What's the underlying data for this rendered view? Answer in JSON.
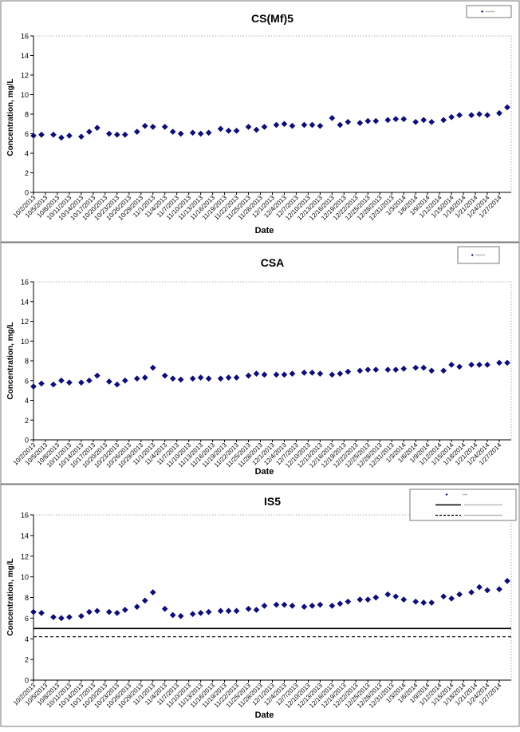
{
  "x_tick_labels": [
    "10/2/2013",
    "10/5/2013",
    "10/8/2013",
    "10/11/2013",
    "10/14/2013",
    "10/17/2013",
    "10/20/2013",
    "10/23/2013",
    "10/26/2013",
    "10/29/2013",
    "11/1/2013",
    "11/4/2013",
    "11/7/2013",
    "11/10/2013",
    "11/13/2013",
    "11/16/2013",
    "11/19/2013",
    "11/22/2013",
    "11/25/2013",
    "11/28/2013",
    "12/1/2013",
    "12/4/2013",
    "12/7/2013",
    "12/10/2013",
    "12/13/2013",
    "12/16/2013",
    "12/19/2013",
    "12/22/2013",
    "12/25/2013",
    "12/28/2013",
    "12/31/2013",
    "1/3/2014",
    "1/6/2014",
    "1/9/2014",
    "1/12/2014",
    "1/15/2014",
    "1/18/2014",
    "1/21/2014",
    "1/24/2014",
    "1/27/2014"
  ],
  "chart_data": [
    {
      "type": "scatter",
      "title": "CS(Mf)5",
      "xlabel": "Date",
      "ylabel": "Concentration, mg/L",
      "ylim": [
        0,
        16
      ],
      "ytick_step": 2,
      "xlim": [
        "2013-10-02",
        "2014-01-30"
      ],
      "grid": false,
      "legend_placement": "top-right",
      "marker_color": "#0d0d80",
      "points": [
        [
          "2013-10-02",
          5.8
        ],
        [
          "2013-10-04",
          5.9
        ],
        [
          "2013-10-07",
          5.9
        ],
        [
          "2013-10-09",
          5.6
        ],
        [
          "2013-10-11",
          5.8
        ],
        [
          "2013-10-14",
          5.7
        ],
        [
          "2013-10-16",
          6.2
        ],
        [
          "2013-10-18",
          6.6
        ],
        [
          "2013-10-21",
          6.0
        ],
        [
          "2013-10-23",
          5.9
        ],
        [
          "2013-10-25",
          5.9
        ],
        [
          "2013-10-28",
          6.2
        ],
        [
          "2013-10-30",
          6.8
        ],
        [
          "2013-11-01",
          6.7
        ],
        [
          "2013-11-04",
          6.7
        ],
        [
          "2013-11-06",
          6.2
        ],
        [
          "2013-11-08",
          6.0
        ],
        [
          "2013-11-11",
          6.1
        ],
        [
          "2013-11-13",
          6.0
        ],
        [
          "2013-11-15",
          6.1
        ],
        [
          "2013-11-18",
          6.5
        ],
        [
          "2013-11-20",
          6.3
        ],
        [
          "2013-11-22",
          6.3
        ],
        [
          "2013-11-25",
          6.7
        ],
        [
          "2013-11-27",
          6.4
        ],
        [
          "2013-11-29",
          6.7
        ],
        [
          "2013-12-02",
          6.9
        ],
        [
          "2013-12-04",
          7.0
        ],
        [
          "2013-12-06",
          6.8
        ],
        [
          "2013-12-09",
          6.9
        ],
        [
          "2013-12-11",
          6.9
        ],
        [
          "2013-12-13",
          6.8
        ],
        [
          "2013-12-16",
          7.6
        ],
        [
          "2013-12-18",
          6.9
        ],
        [
          "2013-12-20",
          7.2
        ],
        [
          "2013-12-23",
          7.1
        ],
        [
          "2013-12-25",
          7.3
        ],
        [
          "2013-12-27",
          7.3
        ],
        [
          "2013-12-30",
          7.4
        ],
        [
          "2014-01-01",
          7.5
        ],
        [
          "2014-01-03",
          7.5
        ],
        [
          "2014-01-06",
          7.2
        ],
        [
          "2014-01-08",
          7.4
        ],
        [
          "2014-01-10",
          7.2
        ],
        [
          "2014-01-13",
          7.4
        ],
        [
          "2014-01-15",
          7.7
        ],
        [
          "2014-01-17",
          7.9
        ],
        [
          "2014-01-20",
          7.9
        ],
        [
          "2014-01-22",
          8.0
        ],
        [
          "2014-01-24",
          7.9
        ],
        [
          "2014-01-27",
          8.1
        ],
        [
          "2014-01-29",
          8.7
        ]
      ]
    },
    {
      "type": "scatter",
      "title": "CSA",
      "xlabel": "Date",
      "ylabel": "Concentration, mg/L",
      "ylim": [
        0,
        16
      ],
      "ytick_step": 2,
      "xlim": [
        "2013-10-02",
        "2014-01-30"
      ],
      "grid": false,
      "legend_placement": "top-right",
      "marker_color": "#0d0d80",
      "points": [
        [
          "2013-10-02",
          5.4
        ],
        [
          "2013-10-04",
          5.7
        ],
        [
          "2013-10-07",
          5.6
        ],
        [
          "2013-10-09",
          6.0
        ],
        [
          "2013-10-11",
          5.8
        ],
        [
          "2013-10-14",
          5.8
        ],
        [
          "2013-10-16",
          6.0
        ],
        [
          "2013-10-18",
          6.5
        ],
        [
          "2013-10-21",
          5.9
        ],
        [
          "2013-10-23",
          5.6
        ],
        [
          "2013-10-25",
          6.0
        ],
        [
          "2013-10-28",
          6.2
        ],
        [
          "2013-10-30",
          6.3
        ],
        [
          "2013-11-01",
          7.3
        ],
        [
          "2013-11-04",
          6.5
        ],
        [
          "2013-11-06",
          6.2
        ],
        [
          "2013-11-08",
          6.1
        ],
        [
          "2013-11-11",
          6.2
        ],
        [
          "2013-11-13",
          6.3
        ],
        [
          "2013-11-15",
          6.2
        ],
        [
          "2013-11-18",
          6.2
        ],
        [
          "2013-11-20",
          6.3
        ],
        [
          "2013-11-22",
          6.3
        ],
        [
          "2013-11-25",
          6.5
        ],
        [
          "2013-11-27",
          6.7
        ],
        [
          "2013-11-29",
          6.6
        ],
        [
          "2013-12-02",
          6.6
        ],
        [
          "2013-12-04",
          6.6
        ],
        [
          "2013-12-06",
          6.7
        ],
        [
          "2013-12-09",
          6.8
        ],
        [
          "2013-12-11",
          6.8
        ],
        [
          "2013-12-13",
          6.7
        ],
        [
          "2013-12-16",
          6.6
        ],
        [
          "2013-12-18",
          6.7
        ],
        [
          "2013-12-20",
          6.9
        ],
        [
          "2013-12-23",
          7.0
        ],
        [
          "2013-12-25",
          7.1
        ],
        [
          "2013-12-27",
          7.1
        ],
        [
          "2013-12-30",
          7.1
        ],
        [
          "2014-01-01",
          7.1
        ],
        [
          "2014-01-03",
          7.2
        ],
        [
          "2014-01-06",
          7.3
        ],
        [
          "2014-01-08",
          7.3
        ],
        [
          "2014-01-10",
          7.0
        ],
        [
          "2014-01-13",
          7.0
        ],
        [
          "2014-01-15",
          7.6
        ],
        [
          "2014-01-17",
          7.4
        ],
        [
          "2014-01-20",
          7.6
        ],
        [
          "2014-01-22",
          7.6
        ],
        [
          "2014-01-24",
          7.6
        ],
        [
          "2014-01-27",
          7.8
        ],
        [
          "2014-01-29",
          7.8
        ]
      ]
    },
    {
      "type": "scatter",
      "title": "IS5",
      "xlabel": "Date",
      "ylabel": "Concentration, mg/L",
      "ylim": [
        0,
        16
      ],
      "ytick_step": 2,
      "xlim": [
        "2013-10-02",
        "2014-01-30"
      ],
      "grid": false,
      "legend_placement": "top-right",
      "marker_color": "#0d0d80",
      "reference_lines": [
        {
          "value": 5.0,
          "style": "solid",
          "color": "#000000"
        },
        {
          "value": 4.2,
          "style": "dashed",
          "color": "#000000"
        }
      ],
      "points": [
        [
          "2013-10-02",
          6.6
        ],
        [
          "2013-10-04",
          6.5
        ],
        [
          "2013-10-07",
          6.1
        ],
        [
          "2013-10-09",
          6.0
        ],
        [
          "2013-10-11",
          6.1
        ],
        [
          "2013-10-14",
          6.2
        ],
        [
          "2013-10-16",
          6.6
        ],
        [
          "2013-10-18",
          6.7
        ],
        [
          "2013-10-21",
          6.6
        ],
        [
          "2013-10-23",
          6.5
        ],
        [
          "2013-10-25",
          6.8
        ],
        [
          "2013-10-28",
          7.1
        ],
        [
          "2013-10-30",
          7.7
        ],
        [
          "2013-11-01",
          8.5
        ],
        [
          "2013-11-04",
          6.9
        ],
        [
          "2013-11-06",
          6.3
        ],
        [
          "2013-11-08",
          6.2
        ],
        [
          "2013-11-11",
          6.4
        ],
        [
          "2013-11-13",
          6.5
        ],
        [
          "2013-11-15",
          6.6
        ],
        [
          "2013-11-18",
          6.7
        ],
        [
          "2013-11-20",
          6.7
        ],
        [
          "2013-11-22",
          6.7
        ],
        [
          "2013-11-25",
          6.9
        ],
        [
          "2013-11-27",
          6.8
        ],
        [
          "2013-11-29",
          7.2
        ],
        [
          "2013-12-02",
          7.3
        ],
        [
          "2013-12-04",
          7.3
        ],
        [
          "2013-12-06",
          7.2
        ],
        [
          "2013-12-09",
          7.1
        ],
        [
          "2013-12-11",
          7.2
        ],
        [
          "2013-12-13",
          7.3
        ],
        [
          "2013-12-16",
          7.2
        ],
        [
          "2013-12-18",
          7.4
        ],
        [
          "2013-12-20",
          7.6
        ],
        [
          "2013-12-23",
          7.8
        ],
        [
          "2013-12-25",
          7.8
        ],
        [
          "2013-12-27",
          8.0
        ],
        [
          "2013-12-30",
          8.3
        ],
        [
          "2014-01-01",
          8.1
        ],
        [
          "2014-01-03",
          7.8
        ],
        [
          "2014-01-06",
          7.6
        ],
        [
          "2014-01-08",
          7.5
        ],
        [
          "2014-01-10",
          7.5
        ],
        [
          "2014-01-13",
          8.1
        ],
        [
          "2014-01-15",
          7.9
        ],
        [
          "2014-01-17",
          8.3
        ],
        [
          "2014-01-20",
          8.5
        ],
        [
          "2014-01-22",
          9.0
        ],
        [
          "2014-01-24",
          8.7
        ],
        [
          "2014-01-27",
          8.8
        ],
        [
          "2014-01-29",
          9.6
        ]
      ]
    }
  ]
}
